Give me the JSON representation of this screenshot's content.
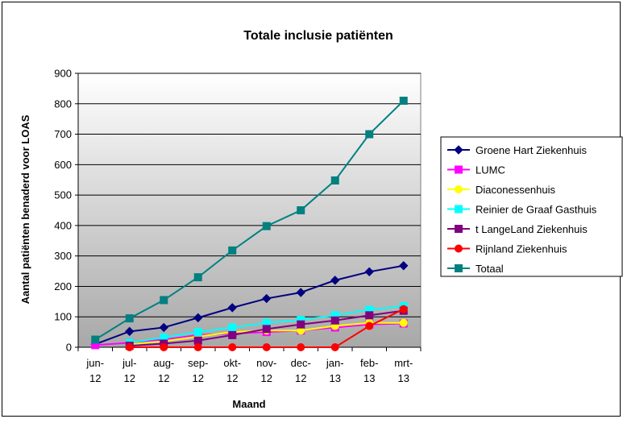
{
  "chart_data": {
    "type": "line",
    "title": "Totale inclusie patiënten",
    "xlabel": "Maand",
    "ylabel": "Aantal patiënten benaderd voor LOAS",
    "ylim": [
      0,
      900
    ],
    "yticks": [
      0,
      100,
      200,
      300,
      400,
      500,
      600,
      700,
      800,
      900
    ],
    "grid": true,
    "legend_position": "right",
    "categories": [
      "jun-12",
      "jul-12",
      "aug-12",
      "sep-12",
      "okt-12",
      "nov-12",
      "dec-12",
      "jan-13",
      "feb-13",
      "mrt-13"
    ],
    "series": [
      {
        "name": "Groene Hart Ziekenhuis",
        "color": "#000080",
        "marker": "diamond",
        "values": [
          10,
          52,
          65,
          97,
          130,
          160,
          180,
          220,
          248,
          268
        ]
      },
      {
        "name": "LUMC",
        "color": "#FF00FF",
        "marker": "square",
        "values": [
          7,
          15,
          25,
          40,
          45,
          50,
          55,
          65,
          75,
          78
        ]
      },
      {
        "name": "Diaconessenhuis",
        "color": "#FFFF00",
        "marker": "circle",
        "values": [
          null,
          10,
          20,
          35,
          50,
          55,
          55,
          70,
          80,
          80
        ]
      },
      {
        "name": "Reinier de Graaf Gasthuis",
        "color": "#00FFFF",
        "marker": "square",
        "values": [
          null,
          15,
          32,
          50,
          65,
          80,
          90,
          105,
          123,
          135
        ]
      },
      {
        "name": "t LangeLand Ziekenhuis",
        "color": "#800080",
        "marker": "square",
        "values": [
          null,
          5,
          12,
          22,
          40,
          60,
          75,
          88,
          105,
          120
        ]
      },
      {
        "name": "Rijnland Ziekenhuis",
        "color": "#FF0000",
        "marker": "circle",
        "values": [
          null,
          0,
          0,
          0,
          0,
          0,
          0,
          0,
          70,
          125
        ]
      },
      {
        "name": "Totaal",
        "color": "#008080",
        "marker": "square",
        "values": [
          25,
          95,
          155,
          230,
          318,
          398,
          450,
          548,
          700,
          810
        ]
      }
    ]
  }
}
